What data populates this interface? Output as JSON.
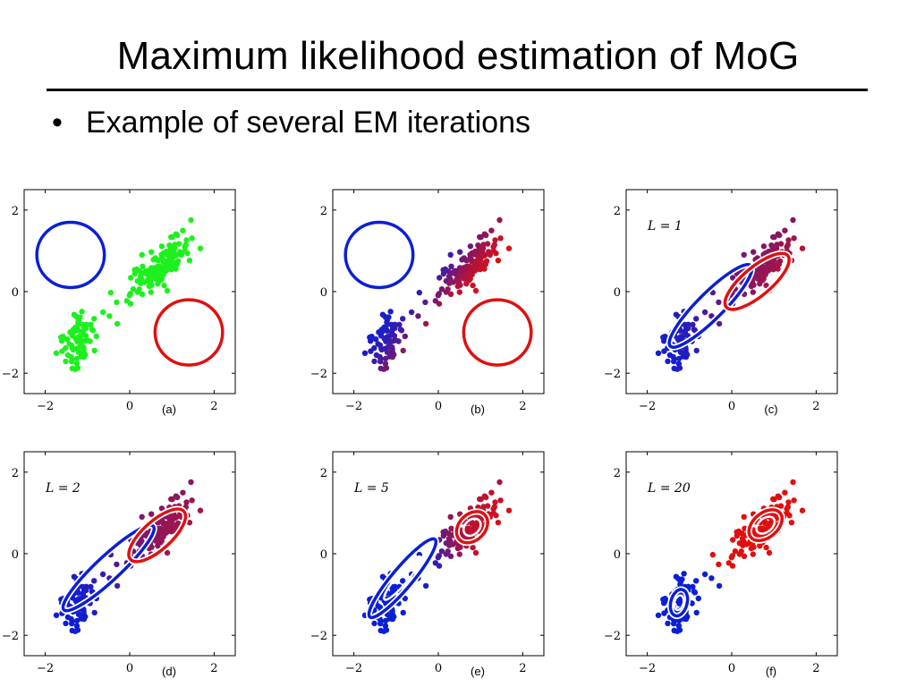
{
  "slide": {
    "title": "Maximum likelihood estimation of MoG",
    "bullet_marker": "•",
    "bullet_text": "Example of several EM iterations"
  },
  "colors": {
    "blue": "#0b1fd6",
    "red": "#e01010",
    "green": "#1ef01e",
    "ring_inner": "#ffffff"
  },
  "chart_data": [
    {
      "type": "scatter",
      "panel_label": "(a)",
      "iteration_label": "",
      "xlim": [
        -2.5,
        2.5
      ],
      "ylim": [
        -2.5,
        2.5
      ],
      "xticks": [
        "−2",
        "0",
        "2"
      ],
      "yticks": [
        "2",
        "0",
        "−2"
      ],
      "point_coloring": "uniform-green",
      "clusters": [
        {
          "name": "",
          "center": [
            -1.25,
            -1.25
          ],
          "n": 70
        },
        {
          "name": "",
          "center": [
            0.8,
            0.7
          ],
          "n": 130
        }
      ],
      "components": [
        {
          "color": "blue",
          "center": [
            -1.4,
            0.9
          ],
          "radii": [
            0.8,
            0.8
          ],
          "angle_deg": 0
        },
        {
          "color": "red",
          "center": [
            1.4,
            -1.0
          ],
          "radii": [
            0.8,
            0.8
          ],
          "angle_deg": 0
        }
      ]
    },
    {
      "type": "scatter",
      "panel_label": "(b)",
      "iteration_label": "",
      "xlim": [
        -2.5,
        2.5
      ],
      "ylim": [
        -2.5,
        2.5
      ],
      "xticks": [
        "−2",
        "0",
        "2"
      ],
      "yticks": [
        "2",
        "0",
        "−2"
      ],
      "point_coloring": "responsibility-gradient",
      "components": [
        {
          "color": "blue",
          "center": [
            -1.4,
            0.9
          ],
          "radii": [
            0.8,
            0.8
          ],
          "angle_deg": 0
        },
        {
          "color": "red",
          "center": [
            1.4,
            -1.0
          ],
          "radii": [
            0.8,
            0.8
          ],
          "angle_deg": 0
        }
      ]
    },
    {
      "type": "scatter",
      "panel_label": "(c)",
      "iteration_label": "L = 1",
      "xlim": [
        -2.5,
        2.5
      ],
      "ylim": [
        -2.5,
        2.5
      ],
      "xticks": [
        "−2",
        "0",
        "2"
      ],
      "yticks": [
        "2",
        "0",
        "−2"
      ],
      "point_coloring": "responsibility-gradient",
      "components": [
        {
          "color": "blue",
          "center": [
            -0.5,
            -0.35
          ],
          "radii": [
            1.35,
            0.32
          ],
          "angle_deg": 45
        },
        {
          "color": "red",
          "center": [
            0.6,
            0.25
          ],
          "radii": [
            0.95,
            0.35
          ],
          "angle_deg": 40
        }
      ]
    },
    {
      "type": "scatter",
      "panel_label": "(d)",
      "iteration_label": "L = 2",
      "xlim": [
        -2.5,
        2.5
      ],
      "ylim": [
        -2.5,
        2.5
      ],
      "xticks": [
        "−2",
        "0",
        "2"
      ],
      "yticks": [
        "2",
        "0",
        "−2"
      ],
      "point_coloring": "responsibility-gradient",
      "components": [
        {
          "color": "blue",
          "center": [
            -0.5,
            -0.35
          ],
          "radii": [
            1.45,
            0.3
          ],
          "angle_deg": 43
        },
        {
          "color": "red",
          "center": [
            0.65,
            0.45
          ],
          "radii": [
            0.85,
            0.35
          ],
          "angle_deg": 42
        }
      ]
    },
    {
      "type": "scatter",
      "panel_label": "(e)",
      "iteration_label": "L = 5",
      "xlim": [
        -2.5,
        2.5
      ],
      "ylim": [
        -2.5,
        2.5
      ],
      "xticks": [
        "−2",
        "0",
        "2"
      ],
      "yticks": [
        "2",
        "0",
        "−2"
      ],
      "point_coloring": "responsibility-gradient",
      "components": [
        {
          "color": "blue",
          "center": [
            -0.85,
            -0.6
          ],
          "radii": [
            1.2,
            0.25
          ],
          "angle_deg": 50
        },
        {
          "color": "red",
          "center": [
            0.8,
            0.65
          ],
          "radii": [
            0.42,
            0.32
          ],
          "angle_deg": 45
        }
      ]
    },
    {
      "type": "scatter",
      "panel_label": "(f)",
      "iteration_label": "L = 20",
      "xlim": [
        -2.5,
        2.5
      ],
      "ylim": [
        -2.5,
        2.5
      ],
      "xticks": [
        "−2",
        "0",
        "2"
      ],
      "yticks": [
        "2",
        "0",
        "−2"
      ],
      "point_coloring": "hard-assignment",
      "components": [
        {
          "color": "blue",
          "center": [
            -1.25,
            -1.2
          ],
          "radii": [
            0.32,
            0.2
          ],
          "angle_deg": 75
        },
        {
          "color": "red",
          "center": [
            0.8,
            0.7
          ],
          "radii": [
            0.45,
            0.3
          ],
          "angle_deg": 40
        }
      ]
    }
  ]
}
